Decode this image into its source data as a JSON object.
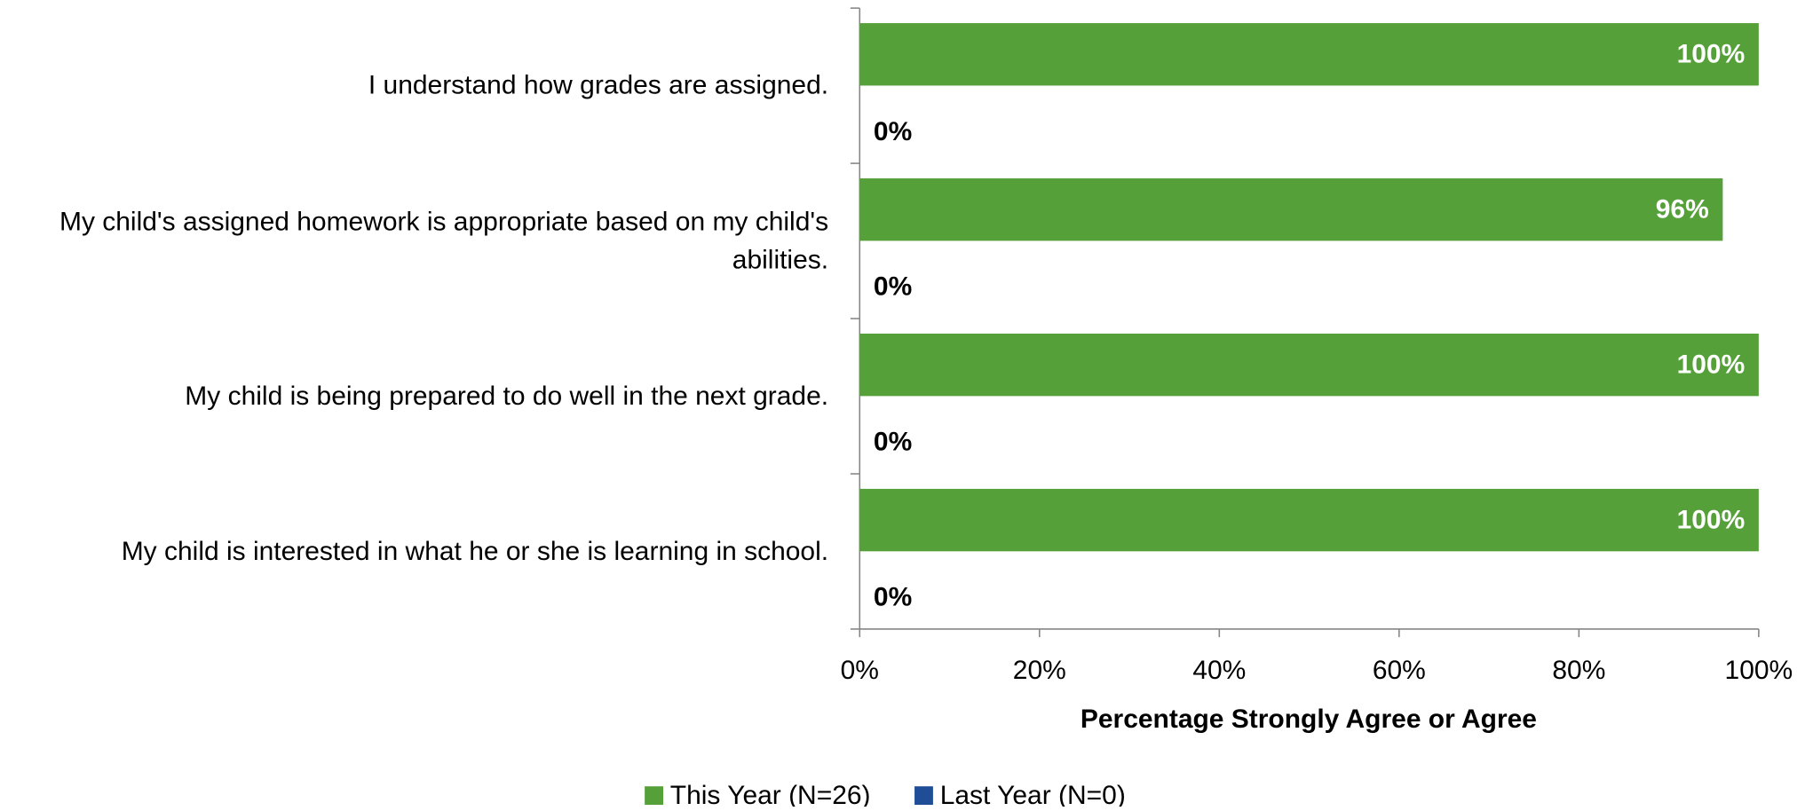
{
  "chart_data": {
    "type": "bar",
    "orientation": "horizontal",
    "xlabel": "Percentage Strongly Agree or Agree",
    "categories": [
      "I understand how grades are assigned.",
      "My child's assigned homework is appropriate based on my child's abilities.",
      "My child is being prepared to do well in the next grade.",
      "My child is interested in what he or she is learning in school."
    ],
    "series": [
      {
        "name": "This Year (N=26)",
        "color": "#56a03a",
        "values": [
          100,
          96,
          100,
          100
        ],
        "value_labels": [
          "100%",
          "96%",
          "100%",
          "100%"
        ]
      },
      {
        "name": "Last Year (N=0)",
        "color": "#1f4e96",
        "values": [
          0,
          0,
          0,
          0
        ],
        "value_labels": [
          "0%",
          "0%",
          "0%",
          "0%"
        ]
      }
    ],
    "xlim": [
      0,
      100
    ],
    "xticks": [
      {
        "value": 0,
        "label": "0%"
      },
      {
        "value": 20,
        "label": "20%"
      },
      {
        "value": 40,
        "label": "40%"
      },
      {
        "value": 60,
        "label": "60%"
      },
      {
        "value": 80,
        "label": "80%"
      },
      {
        "value": 100,
        "label": "100%"
      }
    ],
    "grid": false,
    "legend": "bottom"
  }
}
